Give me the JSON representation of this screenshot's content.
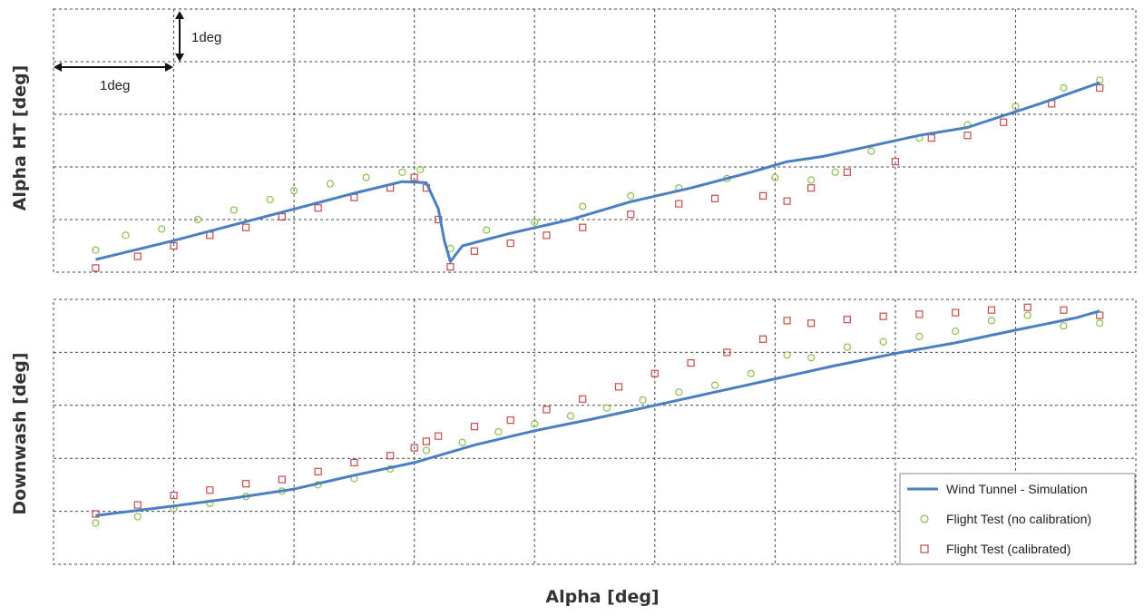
{
  "chart_data": {
    "type": "scatter",
    "xlabel": "Alpha [deg]",
    "scale_markers": {
      "vertical": "1deg",
      "horizontal": "1deg"
    },
    "colors": {
      "wind_tunnel": "#4a7fc1",
      "no_calibration": "#8cc04a",
      "calibrated": "#c84b4b"
    },
    "legend": {
      "placement": "bottom-right",
      "entries": [
        "Wind Tunnel - Simulation",
        "Flight Test (no calibration)",
        "Flight Test (calibrated)"
      ]
    },
    "panels": [
      {
        "ylabel": "Alpha HT [deg]",
        "x_range": [
          0,
          9
        ],
        "y_range": [
          0,
          5
        ],
        "grid": true,
        "series": [
          {
            "name": "Wind Tunnel - Simulation",
            "style": "line",
            "x": [
              0.35,
              1.0,
              1.5,
              2.0,
              2.5,
              2.9,
              3.1,
              3.2,
              3.25,
              3.3,
              3.4,
              3.8,
              4.3,
              4.8,
              5.3,
              5.8,
              6.1,
              6.4,
              6.8,
              7.2,
              7.6,
              8.2,
              8.7
            ],
            "y": [
              0.24,
              0.6,
              0.9,
              1.2,
              1.5,
              1.72,
              1.7,
              1.2,
              0.6,
              0.2,
              0.5,
              0.74,
              1.0,
              1.34,
              1.6,
              1.9,
              2.1,
              2.2,
              2.4,
              2.6,
              2.75,
              3.2,
              3.6
            ]
          },
          {
            "name": "Flight Test (no calibration)",
            "style": "circle",
            "x": [
              0.35,
              0.6,
              0.9,
              1.2,
              1.5,
              1.8,
              2.0,
              2.3,
              2.6,
              2.9,
              3.05,
              3.3,
              3.6,
              4.0,
              4.4,
              4.8,
              5.2,
              5.6,
              6.0,
              6.3,
              6.5,
              6.8,
              7.2,
              7.6,
              8.0,
              8.4,
              8.7
            ],
            "y": [
              0.42,
              0.7,
              0.82,
              1.0,
              1.18,
              1.38,
              1.55,
              1.68,
              1.8,
              1.9,
              1.95,
              0.45,
              0.8,
              0.95,
              1.25,
              1.45,
              1.6,
              1.78,
              1.8,
              1.75,
              1.9,
              2.3,
              2.55,
              2.8,
              3.15,
              3.5,
              3.65
            ]
          },
          {
            "name": "Flight Test (calibrated)",
            "style": "square",
            "x": [
              0.35,
              0.7,
              1.0,
              1.3,
              1.6,
              1.9,
              2.2,
              2.5,
              2.8,
              3.0,
              3.1,
              3.2,
              3.3,
              3.5,
              3.8,
              4.1,
              4.4,
              4.8,
              5.2,
              5.5,
              5.9,
              6.1,
              6.3,
              6.6,
              7.0,
              7.3,
              7.6,
              7.9,
              8.3,
              8.7
            ],
            "y": [
              0.08,
              0.3,
              0.5,
              0.7,
              0.85,
              1.05,
              1.22,
              1.42,
              1.6,
              1.8,
              1.6,
              1.0,
              0.1,
              0.4,
              0.55,
              0.7,
              0.85,
              1.1,
              1.3,
              1.4,
              1.45,
              1.35,
              1.6,
              1.9,
              2.1,
              2.55,
              2.6,
              2.85,
              3.2,
              3.5
            ]
          }
        ]
      },
      {
        "ylabel": "Downwash [deg]",
        "x_range": [
          0,
          9
        ],
        "y_range": [
          0,
          5
        ],
        "grid": true,
        "series": [
          {
            "name": "Wind Tunnel - Simulation",
            "style": "line",
            "x": [
              0.35,
              1.0,
              1.5,
              2.0,
              2.5,
              3.0,
              3.5,
              4.0,
              4.5,
              5.0,
              5.5,
              6.0,
              6.5,
              7.0,
              7.5,
              8.0,
              8.5,
              8.7
            ],
            "y": [
              0.92,
              1.1,
              1.25,
              1.42,
              1.68,
              1.92,
              2.25,
              2.52,
              2.75,
              3.0,
              3.25,
              3.5,
              3.75,
              3.98,
              4.18,
              4.42,
              4.65,
              4.78
            ]
          },
          {
            "name": "Flight Test (no calibration)",
            "style": "circle",
            "x": [
              0.35,
              0.7,
              1.0,
              1.3,
              1.6,
              1.9,
              2.2,
              2.5,
              2.8,
              3.1,
              3.4,
              3.7,
              4.0,
              4.3,
              4.6,
              4.9,
              5.2,
              5.5,
              5.8,
              6.1,
              6.3,
              6.6,
              6.9,
              7.2,
              7.5,
              7.8,
              8.1,
              8.4,
              8.7
            ],
            "y": [
              0.78,
              0.9,
              1.05,
              1.15,
              1.28,
              1.38,
              1.5,
              1.62,
              1.8,
              2.15,
              2.3,
              2.5,
              2.65,
              2.8,
              2.95,
              3.1,
              3.25,
              3.38,
              3.6,
              3.95,
              3.9,
              4.1,
              4.2,
              4.3,
              4.4,
              4.6,
              4.7,
              4.5,
              4.55
            ]
          },
          {
            "name": "Flight Test (calibrated)",
            "style": "square",
            "x": [
              0.35,
              0.7,
              1.0,
              1.3,
              1.6,
              1.9,
              2.2,
              2.5,
              2.8,
              3.0,
              3.1,
              3.2,
              3.5,
              3.8,
              4.1,
              4.4,
              4.7,
              5.0,
              5.3,
              5.6,
              5.9,
              6.1,
              6.3,
              6.6,
              6.9,
              7.2,
              7.5,
              7.8,
              8.1,
              8.4,
              8.7
            ],
            "y": [
              0.95,
              1.12,
              1.3,
              1.4,
              1.52,
              1.6,
              1.75,
              1.92,
              2.05,
              2.2,
              2.32,
              2.42,
              2.6,
              2.72,
              2.92,
              3.12,
              3.35,
              3.6,
              3.8,
              4.0,
              4.25,
              4.6,
              4.55,
              4.62,
              4.68,
              4.72,
              4.75,
              4.8,
              4.85,
              4.8,
              4.7
            ]
          }
        ]
      }
    ]
  }
}
